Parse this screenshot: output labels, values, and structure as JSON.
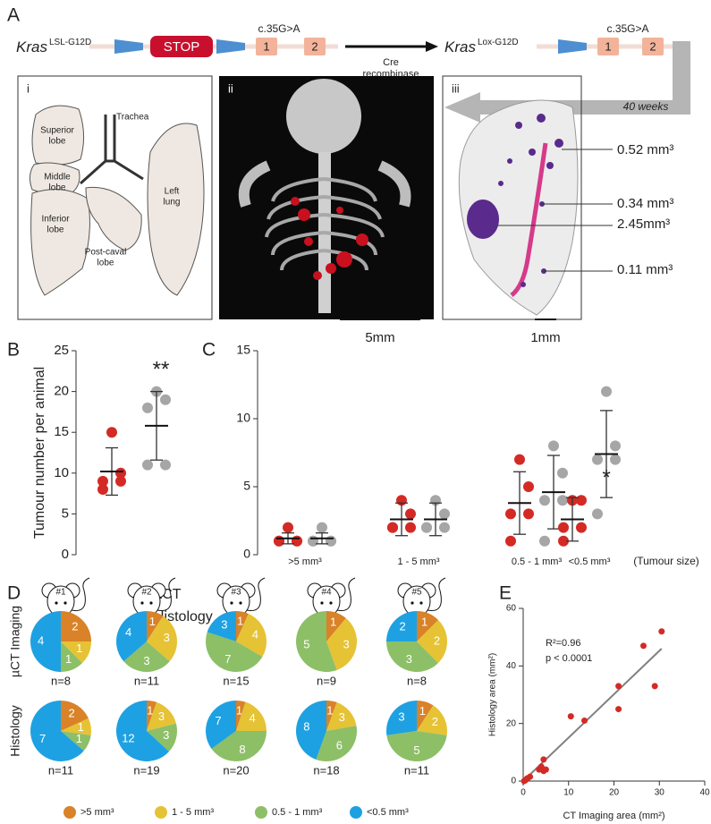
{
  "panel_letters": [
    "A",
    "B",
    "C",
    "D",
    "E"
  ],
  "schematic": {
    "gene_left": "Kras",
    "allele_left": "LSL-G12D",
    "stop": "STOP",
    "mutation_left": "c.35G>A",
    "exons_left": [
      "1",
      "2"
    ],
    "enzyme": [
      "Cre",
      "recombinase"
    ],
    "gene_right": "Kras",
    "allele_right": "Lox-G12D",
    "mutation_right": "c.35G>A",
    "exons_right": [
      "1",
      "2"
    ],
    "duration": "40 weeks"
  },
  "lung_anatomy": {
    "label": "i",
    "parts": [
      {
        "lines": [
          "Trachea"
        ]
      },
      {
        "lines": [
          "Superior",
          "lobe"
        ]
      },
      {
        "lines": [
          "Middle",
          "lobe"
        ]
      },
      {
        "lines": [
          "Inferior",
          "lobe"
        ]
      },
      {
        "lines": [
          "Post-caval",
          "lobe"
        ]
      },
      {
        "lines": [
          "Left",
          "lung"
        ]
      }
    ]
  },
  "ct_render": {
    "label": "ii",
    "scale_bar": "5mm"
  },
  "histology": {
    "label": "iii",
    "tumour_volumes": [
      "0.52 mm³",
      "0.34 mm³",
      "2.45mm³",
      "0.11 mm³"
    ],
    "scale_bar": "1mm"
  },
  "chart_data": [
    {
      "type": "dotplot",
      "ylabel": "Tumour number per animal",
      "annotation": "**",
      "ylim": [
        0,
        25
      ],
      "yticks": [
        0,
        5,
        10,
        15,
        20,
        25
      ],
      "series": [
        {
          "name": "µCT",
          "color": "#d42a25",
          "values": [
            15,
            10,
            9,
            9,
            8
          ],
          "mean": 10.2,
          "sd": 2.9
        },
        {
          "name": "Histology",
          "color": "#a6a6a6",
          "values": [
            20,
            19,
            18,
            11,
            11
          ],
          "mean": 15.8,
          "sd": 4.2
        }
      ]
    },
    {
      "type": "dotplot",
      "categories": [
        ">5 mm³",
        "1 - 5 mm³",
        "0.5 - 1 mm³",
        "<0.5 mm³"
      ],
      "x_note": "(Tumour size)",
      "annotation": "*",
      "ylim": [
        0,
        15
      ],
      "yticks": [
        0,
        5,
        10,
        15
      ],
      "series": [
        {
          "color": "#d42a25",
          "values": [
            [
              2,
              1,
              1,
              1,
              1
            ],
            [
              4,
              3,
              2,
              2,
              2
            ],
            [
              7,
              5,
              3,
              3,
              1
            ],
            [
              4,
              4,
              2,
              2,
              1
            ]
          ],
          "means": [
            1.2,
            2.6,
            3.8,
            2.6
          ],
          "sds": [
            0.4,
            1.2,
            2.3,
            1.6
          ]
        },
        {
          "color": "#a6a6a6",
          "values": [
            [
              2,
              1,
              1,
              1,
              1
            ],
            [
              4,
              3,
              2,
              2,
              2
            ],
            [
              8,
              6,
              4,
              4,
              1
            ],
            [
              12,
              8,
              7,
              7,
              3
            ]
          ],
          "means": [
            1.2,
            2.6,
            4.6,
            7.4
          ],
          "sds": [
            0.4,
            1.2,
            2.7,
            3.2
          ]
        }
      ]
    },
    {
      "type": "pie",
      "row_labels": [
        "µCT Imaging",
        "Histology"
      ],
      "animals": [
        "#1",
        "#2",
        "#3",
        "#4",
        "#5"
      ],
      "categories": [
        ">5 mm³",
        "1 - 5 mm³",
        "0.5 - 1 mm³",
        "<0.5 mm³"
      ],
      "colors": [
        "#d98227",
        "#e6c235",
        "#8dbf67",
        "#1ea1e2"
      ],
      "pies": [
        [
          {
            "n": "n=8",
            "values": [
              2,
              1,
              1,
              4
            ]
          },
          {
            "n": "n=11",
            "values": [
              1,
              3,
              3,
              4
            ]
          },
          {
            "n": "n=15",
            "values": [
              1,
              4,
              7,
              3
            ]
          },
          {
            "n": "n=9",
            "values": [
              1,
              3,
              5,
              0
            ]
          },
          {
            "n": "n=8",
            "values": [
              1,
              2,
              3,
              2
            ]
          }
        ],
        [
          {
            "n": "n=11",
            "values": [
              2,
              1,
              1,
              7
            ]
          },
          {
            "n": "n=19",
            "values": [
              1,
              3,
              3,
              12
            ]
          },
          {
            "n": "n=20",
            "values": [
              1,
              4,
              8,
              7
            ]
          },
          {
            "n": "n=18",
            "values": [
              1,
              3,
              6,
              8
            ]
          },
          {
            "n": "n=11",
            "values": [
              1,
              2,
              5,
              3
            ]
          }
        ]
      ]
    },
    {
      "type": "scatter",
      "xlabel": "CT Imaging area (mm²)",
      "ylabel": "Histology area (mm²)",
      "annotations": [
        "R²=0.96",
        "p < 0.0001"
      ],
      "xlim": [
        0,
        40
      ],
      "xticks": [
        0,
        10,
        20,
        30,
        40
      ],
      "ylim": [
        0,
        60
      ],
      "yticks": [
        0,
        20,
        40,
        60
      ],
      "color": "#d42a25",
      "x": [
        0.2,
        0.5,
        0.8,
        1,
        1.5,
        3.5,
        4,
        4.5,
        4.5,
        5,
        10.5,
        13.5,
        21,
        21,
        26.5,
        29,
        30.5
      ],
      "y": [
        0,
        0.3,
        0.8,
        1,
        1.5,
        4,
        5,
        7.5,
        3.5,
        4,
        22.5,
        21,
        33,
        25,
        47,
        33,
        52
      ],
      "fit": {
        "color": "#808080",
        "x": [
          0,
          30.5
        ],
        "y": [
          0,
          46
        ]
      }
    }
  ]
}
